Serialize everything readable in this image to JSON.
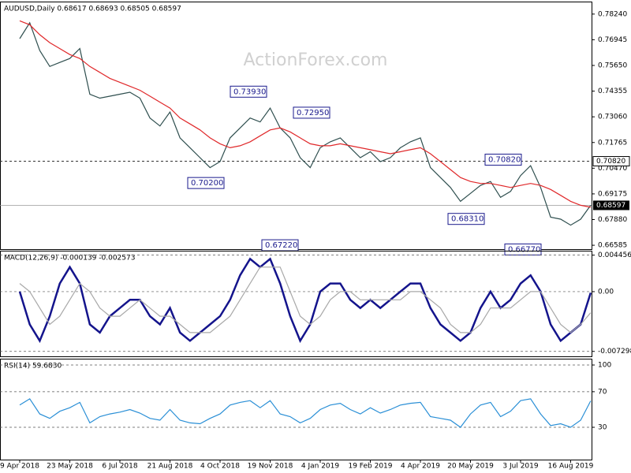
{
  "chart_data": [
    {
      "type": "line",
      "title": "AUDUSD,Daily  0.68617 0.68693 0.68505 0.68597",
      "watermark": "ActionForex.com",
      "series": [
        {
          "color": "#2f4f4f",
          "values": [
            0.77,
            0.778,
            0.764,
            0.756,
            0.758,
            0.76,
            0.765,
            0.742,
            0.74,
            0.741,
            0.742,
            0.743,
            0.74,
            0.73,
            0.726,
            0.733,
            0.72,
            0.715,
            0.71,
            0.705,
            0.708,
            0.72,
            0.725,
            0.73,
            0.728,
            0.735,
            0.725,
            0.72,
            0.71,
            0.705,
            0.715,
            0.718,
            0.72,
            0.715,
            0.71,
            0.713,
            0.708,
            0.71,
            0.715,
            0.718,
            0.72,
            0.705,
            0.7,
            0.695,
            0.688,
            0.692,
            0.696,
            0.698,
            0.69,
            0.693,
            0.701,
            0.706,
            0.695,
            0.68,
            0.679,
            0.676,
            0.679,
            0.686
          ]
        },
        {
          "color": "#e0282a",
          "values": [
            0.779,
            0.777,
            0.772,
            0.768,
            0.765,
            0.762,
            0.76,
            0.756,
            0.753,
            0.75,
            0.748,
            0.746,
            0.744,
            0.741,
            0.738,
            0.735,
            0.73,
            0.727,
            0.724,
            0.72,
            0.717,
            0.715,
            0.716,
            0.718,
            0.721,
            0.724,
            0.725,
            0.723,
            0.72,
            0.717,
            0.716,
            0.716,
            0.717,
            0.716,
            0.715,
            0.714,
            0.713,
            0.712,
            0.713,
            0.714,
            0.715,
            0.712,
            0.708,
            0.704,
            0.7,
            0.698,
            0.697,
            0.697,
            0.696,
            0.695,
            0.696,
            0.697,
            0.696,
            0.694,
            0.691,
            0.688,
            0.686,
            0.685
          ]
        }
      ],
      "ylim": [
        0.6639,
        0.7887
      ],
      "yticks": [
        {
          "value": 0.7824,
          "label": "0.78240"
        },
        {
          "value": 0.76945,
          "label": "0.76945"
        },
        {
          "value": 0.7565,
          "label": "0.75650"
        },
        {
          "value": 0.74355,
          "label": "0.74355"
        },
        {
          "value": 0.7306,
          "label": "0.73060"
        },
        {
          "value": 0.71765,
          "label": "0.71765"
        },
        {
          "value": 0.7047,
          "label": "0.70470"
        },
        {
          "value": 0.69175,
          "label": "0.69175"
        },
        {
          "value": 0.6788,
          "label": "0.67880"
        },
        {
          "value": 0.66585,
          "label": "0.66585"
        }
      ],
      "level": {
        "value": 0.7082,
        "label": "0.70820"
      },
      "last": {
        "value": 0.68597,
        "label": "0.68597"
      },
      "annotations": [
        {
          "value": 0.7393,
          "label": "0.73930"
        },
        {
          "value": 0.702,
          "label": "0.70200"
        },
        {
          "value": 0.7295,
          "label": "0.72950"
        },
        {
          "value": 0.6722,
          "label": "0.67220"
        },
        {
          "value": 0.7082,
          "label": "0.70820"
        },
        {
          "value": 0.6831,
          "label": "0.68310"
        },
        {
          "value": 0.6677,
          "label": "0.66770"
        }
      ]
    },
    {
      "type": "line",
      "title": "MACD(12,26,9) -0.000139 -0.002573",
      "series": [
        {
          "color": "#14148c",
          "values": [
            0.0,
            -0.004,
            -0.006,
            -0.003,
            0.001,
            0.003,
            0.001,
            -0.004,
            -0.005,
            -0.003,
            -0.002,
            -0.001,
            -0.001,
            -0.003,
            -0.004,
            -0.002,
            -0.005,
            -0.006,
            -0.005,
            -0.004,
            -0.003,
            -0.001,
            0.002,
            0.004,
            0.003,
            0.004,
            0.001,
            -0.003,
            -0.006,
            -0.004,
            0.0,
            0.001,
            0.001,
            -0.001,
            -0.002,
            -0.001,
            -0.002,
            -0.001,
            0.0,
            0.001,
            0.001,
            -0.002,
            -0.004,
            -0.005,
            -0.006,
            -0.005,
            -0.002,
            0.0,
            -0.002,
            -0.001,
            0.001,
            0.002,
            0.0,
            -0.004,
            -0.006,
            -0.005,
            -0.004,
            -0.000139
          ]
        },
        {
          "color": "#a8a8a8",
          "values": [
            0.001,
            0.0,
            -0.002,
            -0.004,
            -0.003,
            -0.001,
            0.001,
            0.0,
            -0.002,
            -0.003,
            -0.003,
            -0.002,
            -0.001,
            -0.002,
            -0.003,
            -0.003,
            -0.004,
            -0.005,
            -0.005,
            -0.005,
            -0.004,
            -0.003,
            -0.001,
            0.001,
            0.003,
            0.003,
            0.003,
            0.0,
            -0.003,
            -0.004,
            -0.003,
            -0.001,
            0.0,
            0.0,
            -0.001,
            -0.001,
            -0.001,
            -0.001,
            -0.001,
            0.0,
            0.0,
            -0.001,
            -0.002,
            -0.004,
            -0.005,
            -0.005,
            -0.004,
            -0.002,
            -0.002,
            -0.002,
            -0.001,
            0.0,
            0.0,
            -0.002,
            -0.004,
            -0.005,
            -0.004,
            -0.002573
          ]
        }
      ],
      "ylim": [
        -0.0079,
        0.005
      ],
      "yticks": [
        0.004456,
        {
          "value": 0,
          "label": "0.00"
        },
        -0.007298
      ]
    },
    {
      "type": "line",
      "title": "RSI(14) 59.6830",
      "categories": [
        "9 Apr 2018",
        null,
        null,
        null,
        null,
        "23 May 2018",
        null,
        null,
        null,
        null,
        "6 Jul 2018",
        null,
        null,
        null,
        null,
        "21 Aug 2018",
        null,
        null,
        null,
        null,
        "4 Oct 2018",
        null,
        null,
        null,
        null,
        "19 Nov 2018",
        null,
        null,
        null,
        null,
        "4 Jan 2019",
        null,
        null,
        null,
        null,
        "19 Feb 2019",
        null,
        null,
        null,
        null,
        "4 Apr 2019",
        null,
        null,
        null,
        null,
        "20 May 2019",
        null,
        null,
        null,
        null,
        "3 Jul 2019",
        null,
        null,
        null,
        null,
        "16 Aug 2019",
        null,
        null
      ],
      "series": [
        {
          "color": "#2a8fd6",
          "values": [
            55,
            62,
            45,
            40,
            48,
            52,
            58,
            35,
            42,
            45,
            47,
            50,
            46,
            40,
            38,
            50,
            38,
            35,
            34,
            40,
            45,
            55,
            58,
            60,
            52,
            60,
            45,
            42,
            35,
            40,
            50,
            55,
            57,
            50,
            45,
            52,
            46,
            50,
            55,
            57,
            58,
            42,
            40,
            38,
            30,
            45,
            55,
            58,
            42,
            48,
            60,
            62,
            45,
            32,
            34,
            30,
            38,
            59.683
          ]
        }
      ],
      "ylim": [
        -6.3,
        107.1
      ],
      "yticks": [
        100,
        70,
        30
      ]
    }
  ]
}
